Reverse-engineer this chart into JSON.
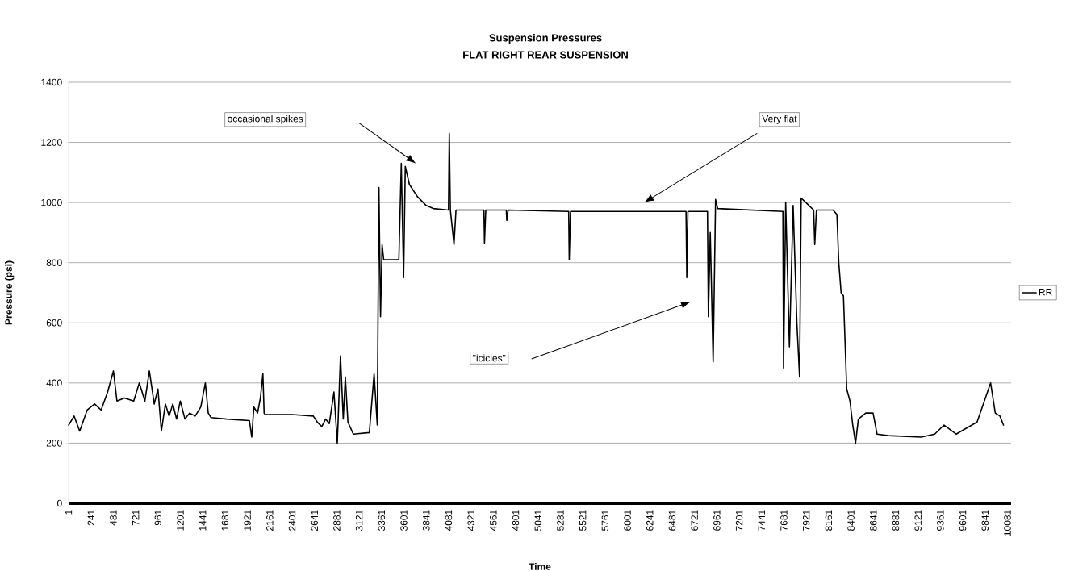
{
  "chart_data": {
    "type": "line",
    "title": "Suspension Pressures",
    "subtitle": "FLAT RIGHT REAR SUSPENSION",
    "xlabel": "Time",
    "ylabel": "Pressure (psi)",
    "series": [
      {
        "name": "RR",
        "color": "#000000",
        "x": [
          1,
          60,
          120,
          200,
          280,
          350,
          420,
          482,
          520,
          600,
          700,
          760,
          820,
          868,
          920,
          960,
          997,
          1040,
          1080,
          1120,
          1160,
          1200,
          1250,
          1300,
          1360,
          1420,
          1469,
          1500,
          1530,
          1700,
          1942,
          1967,
          1990,
          2030,
          2060,
          2087,
          2100,
          2113,
          2400,
          2628,
          2671,
          2720,
          2760,
          2800,
          2850,
          2886,
          2920,
          2950,
          2972,
          3000,
          3058,
          3230,
          3281,
          3315,
          3333,
          3350,
          3367,
          3384,
          3547,
          3573,
          3598,
          3616,
          3660,
          3745,
          3840,
          3916,
          4080,
          4088,
          4100,
          4139,
          4160,
          4460,
          4466,
          4480,
          4700,
          4706,
          4720,
          5370,
          5376,
          5390,
          6630,
          6638,
          6650,
          6860,
          6870,
          6890,
          6921,
          6947,
          6970,
          7670,
          7677,
          7700,
          7740,
          7780,
          7820,
          7849,
          7866,
          7950,
          8000,
          8012,
          8030,
          8209,
          8250,
          8270,
          8295,
          8320,
          8355,
          8390,
          8420,
          8450,
          8480,
          8560,
          8638,
          8681,
          8800,
          9154,
          9300,
          9400,
          9530,
          9755,
          9900,
          9950,
          10000,
          10038
        ],
        "values": [
          260,
          290,
          240,
          310,
          330,
          310,
          370,
          440,
          340,
          350,
          340,
          400,
          340,
          440,
          330,
          380,
          240,
          330,
          290,
          330,
          280,
          340,
          280,
          300,
          290,
          320,
          400,
          300,
          285,
          280,
          275,
          220,
          320,
          300,
          350,
          430,
          300,
          295,
          295,
          290,
          270,
          255,
          280,
          265,
          370,
          200,
          490,
          280,
          420,
          270,
          230,
          235,
          430,
          260,
          1050,
          620,
          860,
          810,
          810,
          1130,
          750,
          1120,
          1060,
          1020,
          990,
          980,
          975,
          1230,
          975,
          860,
          975,
          975,
          865,
          975,
          975,
          940,
          975,
          970,
          810,
          970,
          970,
          750,
          970,
          970,
          620,
          900,
          470,
          1010,
          980,
          970,
          450,
          1000,
          520,
          990,
          600,
          420,
          1015,
          990,
          975,
          860,
          975,
          975,
          960,
          800,
          700,
          690,
          380,
          340,
          260,
          200,
          280,
          300,
          300,
          230,
          225,
          220,
          230,
          260,
          230,
          270,
          400,
          300,
          290,
          260
        ]
      }
    ],
    "xlim": [
      1,
      10120
    ],
    "ylim": [
      0,
      1400
    ],
    "xticks": [
      1,
      241,
      481,
      721,
      961,
      1201,
      1441,
      1681,
      1921,
      2161,
      2401,
      2641,
      2881,
      3121,
      3361,
      3601,
      3841,
      4081,
      4321,
      4561,
      4801,
      5041,
      5281,
      5521,
      5761,
      6001,
      6241,
      6481,
      6721,
      6961,
      7201,
      7441,
      7681,
      7921,
      8161,
      8401,
      8641,
      8881,
      9121,
      9361,
      9601,
      9841,
      10081
    ],
    "yticks": [
      0,
      200,
      400,
      600,
      800,
      1000,
      1200,
      1400
    ],
    "grid": "y",
    "legend": "right",
    "marker": "none",
    "line_style": "solid",
    "annotations": [
      "occasional spikes",
      "Very flat",
      "\"icicles\""
    ]
  }
}
